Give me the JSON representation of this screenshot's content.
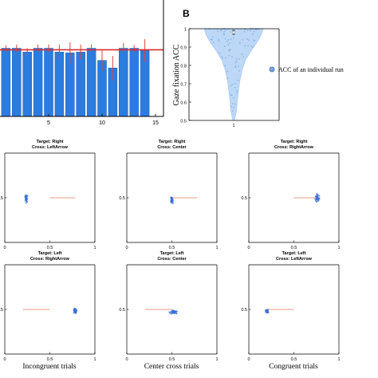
{
  "colors": {
    "bar": "#2b7ce0",
    "bar_edge": "#1c5fb8",
    "errorbar": "#d94a3a",
    "reference_line": "#d92b2b",
    "violin_fill": "#bcd8f6",
    "point": "#3d7fd6",
    "gaze_point": "#3b6fd8",
    "target_line": "#e07a60"
  },
  "panel_b_label": "B",
  "chart_data": [
    {
      "id": "bar-panel",
      "type": "bar",
      "title": "",
      "xlabel": "",
      "ylabel": "",
      "xticks": [
        "5",
        "10",
        "15"
      ],
      "xlim": [
        0,
        15
      ],
      "ylim": [
        0,
        1.15
      ],
      "reference_line": 0.88,
      "bars": [
        {
          "x": 1,
          "value": 0.9,
          "err": 0.04
        },
        {
          "x": 2,
          "value": 0.9,
          "err": 0.05
        },
        {
          "x": 3,
          "value": 0.85,
          "err": 0.05
        },
        {
          "x": 4,
          "value": 0.9,
          "err": 0.05
        },
        {
          "x": 5,
          "value": 0.9,
          "err": 0.05
        },
        {
          "x": 6,
          "value": 0.85,
          "err": 0.1
        },
        {
          "x": 7,
          "value": 0.84,
          "err": 0.14
        },
        {
          "x": 8,
          "value": 0.85,
          "err": 0.1
        },
        {
          "x": 9,
          "value": 0.9,
          "err": 0.05
        },
        {
          "x": 10,
          "value": 0.74,
          "err": 0.14
        },
        {
          "x": 11,
          "value": 0.64,
          "err": 0.16
        },
        {
          "x": 12,
          "value": 0.9,
          "err": 0.07
        },
        {
          "x": 13,
          "value": 0.9,
          "err": 0.04
        },
        {
          "x": 14,
          "value": 0.87,
          "err": 0.15
        }
      ]
    },
    {
      "id": "violin-panel",
      "type": "scatter",
      "title": "",
      "ylabel": "Gaze fixation ACC",
      "xticks": [
        "1"
      ],
      "yticks": [
        "0.5",
        "0.6",
        "0.7",
        "0.8",
        "0.9",
        "1"
      ],
      "ylim": [
        0.5,
        1
      ],
      "legend": "ACC of an individual run",
      "legend_position": "right",
      "median": 0.98,
      "iqr": [
        0.965,
        0.995
      ]
    },
    {
      "id": "gaze-grid",
      "type": "scatter",
      "xticks": [
        "0",
        "0.5",
        "1"
      ],
      "ytick": "0.5",
      "xlim": [
        0,
        1
      ],
      "ylim": [
        0,
        1
      ],
      "column_labels": [
        "Incongruent trials",
        "Center cross trials",
        "Congruent trials"
      ],
      "panels": [
        {
          "target": "Target: Right",
          "cross": "Cross: LeftArrow",
          "cluster_x": 0.24,
          "cluster_y": 0.5,
          "spread_x": 0.025,
          "spread_y": 0.07,
          "line_from": 0.5,
          "line_to": 0.78
        },
        {
          "target": "Target: Right",
          "cross": "Cross: Center",
          "cluster_x": 0.5,
          "cluster_y": 0.47,
          "spread_x": 0.02,
          "spread_y": 0.05,
          "line_from": 0.5,
          "line_to": 0.78
        },
        {
          "target": "Target: Right",
          "cross": "Cross: RightArrow",
          "cluster_x": 0.76,
          "cluster_y": 0.5,
          "spread_x": 0.035,
          "spread_y": 0.06,
          "line_from": 0.5,
          "line_to": 0.78
        },
        {
          "target": "Target: Left",
          "cross": "Cross: RightArrow",
          "cluster_x": 0.78,
          "cluster_y": 0.48,
          "spread_x": 0.03,
          "spread_y": 0.04,
          "line_from": 0.2,
          "line_to": 0.5
        },
        {
          "target": "Target: Left",
          "cross": "Cross: Center",
          "cluster_x": 0.52,
          "cluster_y": 0.47,
          "spread_x": 0.06,
          "spread_y": 0.03,
          "line_from": 0.2,
          "line_to": 0.5
        },
        {
          "target": "Target: Left",
          "cross": "Cross: LeftArrow",
          "cluster_x": 0.2,
          "cluster_y": 0.48,
          "spread_x": 0.025,
          "spread_y": 0.03,
          "line_from": 0.2,
          "line_to": 0.5
        }
      ]
    }
  ]
}
